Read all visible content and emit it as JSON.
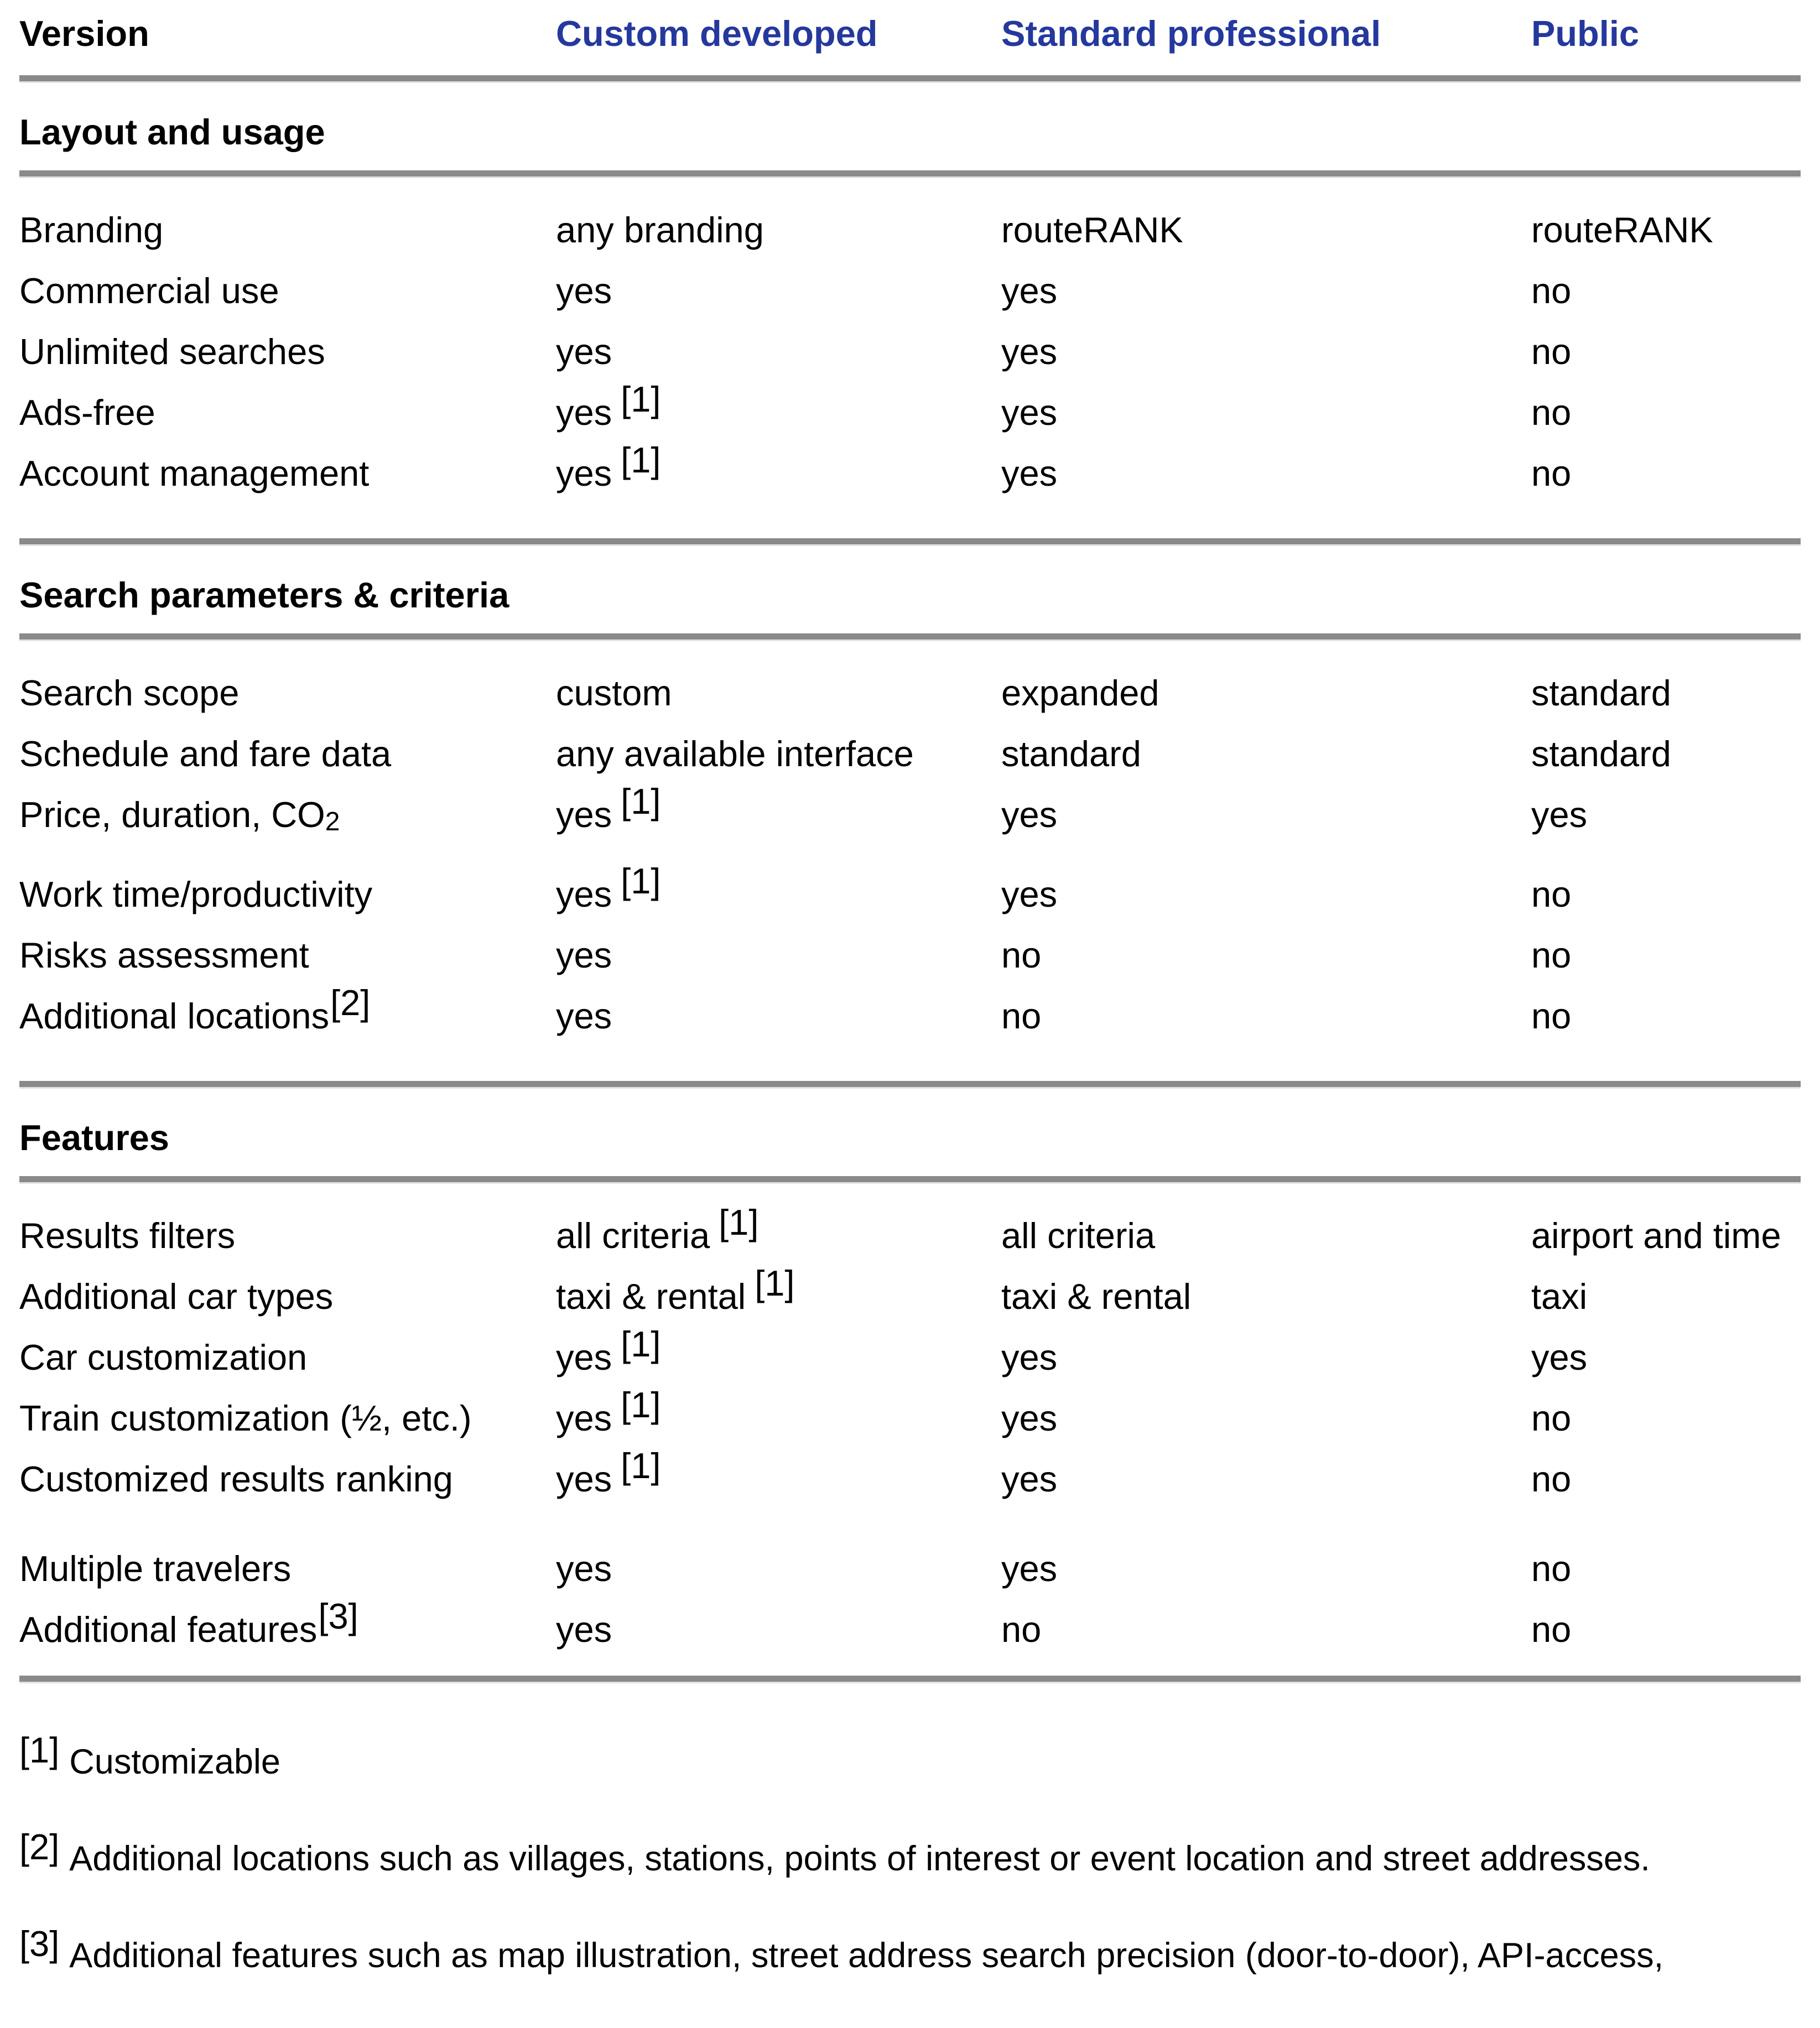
{
  "theme": {
    "background": "#ffffff",
    "text_color": "#000000",
    "accent_blue": "#24389d",
    "divider_color": "#8a8a8a",
    "divider_edge": "#e2e2e2"
  },
  "table": {
    "columns": [
      {
        "label": "Version",
        "style": "plain"
      },
      {
        "label": "Custom developed",
        "style": "accent"
      },
      {
        "label": "Standard professional",
        "style": "accent"
      },
      {
        "label": "Public",
        "style": "accent"
      }
    ],
    "sections": [
      {
        "heading": "Layout and usage",
        "rows": [
          {
            "label": "Branding",
            "cells": [
              {
                "text": "any branding"
              },
              {
                "text": "routeRANK"
              },
              {
                "text": "routeRANK"
              }
            ]
          },
          {
            "label": "Commercial use",
            "cells": [
              {
                "text": "yes"
              },
              {
                "text": "yes"
              },
              {
                "text": "no"
              }
            ]
          },
          {
            "label": "Unlimited searches",
            "cells": [
              {
                "text": "yes"
              },
              {
                "text": "yes"
              },
              {
                "text": "no"
              }
            ]
          },
          {
            "label": "Ads-free",
            "cells": [
              {
                "text": "yes",
                "sup": "[1]"
              },
              {
                "text": "yes"
              },
              {
                "text": "no"
              }
            ]
          },
          {
            "label": "Account management",
            "cells": [
              {
                "text": "yes",
                "sup": "[1]"
              },
              {
                "text": "yes"
              },
              {
                "text": "no"
              }
            ]
          }
        ]
      },
      {
        "heading": "Search parameters & criteria",
        "rows": [
          {
            "label": "Search scope",
            "cells": [
              {
                "text": "custom"
              },
              {
                "text": "expanded"
              },
              {
                "text": "standard"
              }
            ]
          },
          {
            "label": "Schedule and fare data",
            "cells": [
              {
                "text": "any available interface"
              },
              {
                "text": "standard"
              },
              {
                "text": "standard"
              }
            ]
          },
          {
            "label": "Price, duration, CO",
            "label_sub": "2",
            "cells": [
              {
                "text": "yes",
                "sup": "[1]"
              },
              {
                "text": "yes"
              },
              {
                "text": "yes"
              }
            ]
          },
          {
            "label": "Work time/productivity",
            "cells": [
              {
                "text": "yes",
                "sup": "[1]"
              },
              {
                "text": "yes"
              },
              {
                "text": "no"
              }
            ]
          },
          {
            "label": "Risks assessment",
            "cells": [
              {
                "text": "yes"
              },
              {
                "text": "no"
              },
              {
                "text": "no"
              }
            ]
          },
          {
            "label": "Additional locations",
            "label_sup": "[2]",
            "cells": [
              {
                "text": "yes"
              },
              {
                "text": "no"
              },
              {
                "text": "no"
              }
            ]
          }
        ]
      },
      {
        "heading": "Features",
        "rows": [
          {
            "label": "Results filters",
            "cells": [
              {
                "text": "all criteria",
                "sup": "[1]"
              },
              {
                "text": "all criteria"
              },
              {
                "text": "airport and time"
              }
            ]
          },
          {
            "label": "Additional car types",
            "cells": [
              {
                "text": "taxi & rental",
                "sup": "[1]"
              },
              {
                "text": "taxi & rental"
              },
              {
                "text": "taxi"
              }
            ]
          },
          {
            "label": "Car customization",
            "cells": [
              {
                "text": "yes",
                "sup": "[1]"
              },
              {
                "text": "yes"
              },
              {
                "text": "yes"
              }
            ]
          },
          {
            "label": "Train customization (½, etc.)",
            "cells": [
              {
                "text": "yes",
                "sup": "[1]"
              },
              {
                "text": "yes"
              },
              {
                "text": "no"
              }
            ]
          },
          {
            "label": "Customized results ranking",
            "cells": [
              {
                "text": "yes",
                "sup": "[1]"
              },
              {
                "text": "yes"
              },
              {
                "text": "no"
              }
            ]
          },
          {
            "label": "Multiple travelers",
            "cells": [
              {
                "text": "yes"
              },
              {
                "text": "yes"
              },
              {
                "text": "no"
              }
            ]
          },
          {
            "label": "Additional features",
            "label_sup": "[3]",
            "cells": [
              {
                "text": "yes"
              },
              {
                "text": "no"
              },
              {
                "text": "no"
              }
            ]
          }
        ]
      }
    ]
  },
  "footnotes": [
    {
      "marker": "[1]",
      "text": "Customizable"
    },
    {
      "marker": "[2]",
      "text": "Additional locations such as villages, stations, points of interest or event location and street addresses."
    },
    {
      "marker": "[3]",
      "text": "Additional features such as map illustration, street address search precision (door-to-door), API-access,"
    }
  ]
}
